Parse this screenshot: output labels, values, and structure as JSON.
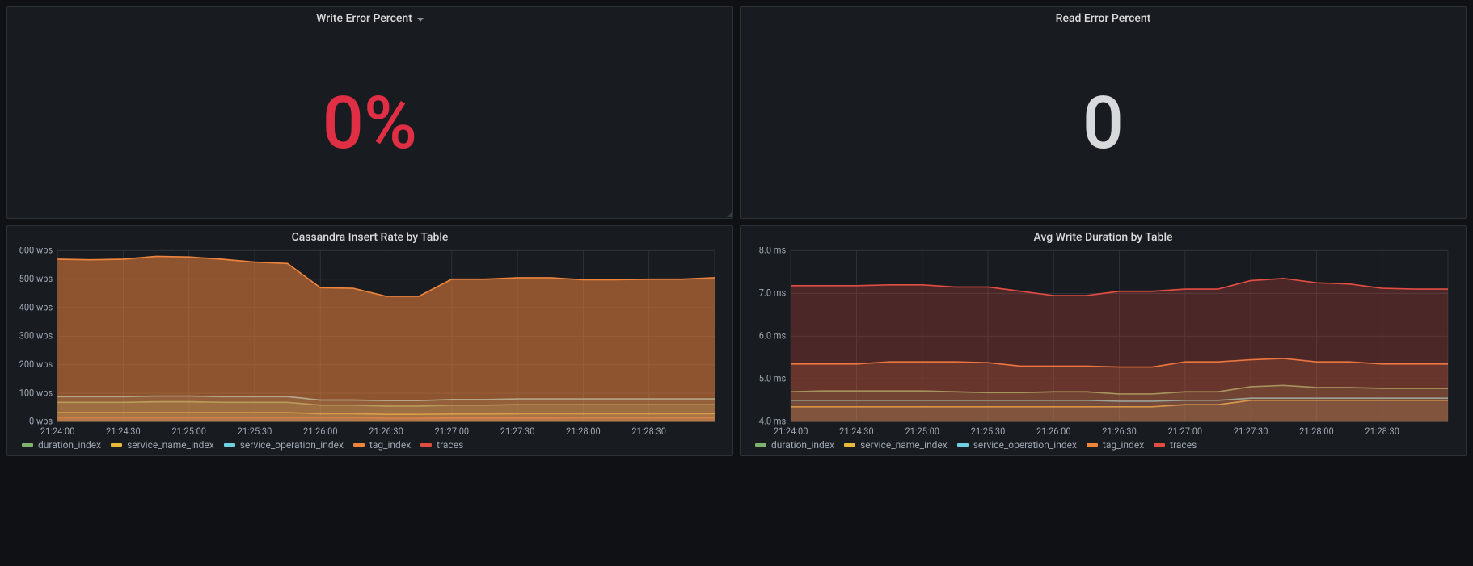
{
  "background_color": "#0f1115",
  "panel_bg": "#181b1f",
  "panel_border": "#2c3235",
  "panels": {
    "write_error_percent": {
      "title": "Write Error Percent",
      "has_menu": true,
      "value": "0%",
      "value_color": "#e02f44",
      "value_fontsize": 90
    },
    "read_error_percent": {
      "title": "Read Error Percent",
      "has_menu": false,
      "value": "0",
      "value_color": "#d8d9da",
      "value_fontsize": 90
    },
    "cassandra_insert_rate": {
      "title": "Cassandra Insert Rate by Table",
      "type": "area-line",
      "x_labels": [
        "21:24:00",
        "21:24:30",
        "21:25:00",
        "21:25:30",
        "21:26:00",
        "21:26:30",
        "21:27:00",
        "21:27:30",
        "21:28:00",
        "21:28:30"
      ],
      "y_labels": [
        "0 wps",
        "100 wps",
        "200 wps",
        "300 wps",
        "400 wps",
        "500 wps",
        "600 wps"
      ],
      "ymin": 0,
      "ymax": 600,
      "grid_color": "#2c3235",
      "axis_fontsize": 11,
      "series": [
        {
          "name": "traces",
          "color": "#e24d42",
          "fill": true,
          "fill_opacity": 0.35,
          "values": [
            15,
            15,
            15,
            15,
            15,
            15,
            15,
            15,
            15,
            15,
            12,
            12,
            13,
            13,
            13,
            13,
            14,
            14,
            14,
            14,
            14
          ]
        },
        {
          "name": "service_name_index",
          "color": "#eab839",
          "fill": true,
          "fill_opacity": 0.15,
          "values": [
            32,
            32,
            32,
            32,
            32,
            32,
            32,
            32,
            28,
            28,
            26,
            26,
            27,
            27,
            28,
            28,
            28,
            28,
            28,
            28,
            28
          ]
        },
        {
          "name": "duration_index",
          "color": "#7eb26d",
          "fill": true,
          "fill_opacity": 0.25,
          "values": [
            68,
            68,
            68,
            70,
            70,
            68,
            68,
            68,
            58,
            58,
            55,
            55,
            58,
            58,
            60,
            60,
            60,
            60,
            60,
            60,
            60
          ]
        },
        {
          "name": "service_operation_index",
          "color": "#6ed0e0",
          "fill": true,
          "fill_opacity": 0.15,
          "values": [
            88,
            88,
            88,
            90,
            90,
            88,
            88,
            88,
            76,
            76,
            74,
            74,
            78,
            78,
            80,
            80,
            80,
            80,
            80,
            80,
            80
          ]
        },
        {
          "name": "tag_index",
          "color": "#ef843c",
          "fill": true,
          "fill_opacity": 0.55,
          "values": [
            570,
            568,
            570,
            580,
            578,
            570,
            560,
            555,
            470,
            468,
            440,
            440,
            500,
            500,
            505,
            505,
            498,
            498,
            500,
            500,
            505
          ]
        }
      ],
      "legend_order": [
        "duration_index",
        "service_name_index",
        "service_operation_index",
        "tag_index",
        "traces"
      ]
    },
    "avg_write_duration": {
      "title": "Avg Write Duration by Table",
      "type": "area-line",
      "x_labels": [
        "21:24:00",
        "21:24:30",
        "21:25:00",
        "21:25:30",
        "21:26:00",
        "21:26:30",
        "21:27:00",
        "21:27:30",
        "21:28:00",
        "21:28:30"
      ],
      "y_labels": [
        "4.0 ms",
        "5.0 ms",
        "6.0 ms",
        "7.0 ms",
        "8.0 ms"
      ],
      "ymin": 4.0,
      "ymax": 8.0,
      "grid_color": "#2c3235",
      "axis_fontsize": 11,
      "series": [
        {
          "name": "service_name_index",
          "color": "#eab839",
          "fill": true,
          "fill_opacity": 0.12,
          "values": [
            4.35,
            4.35,
            4.35,
            4.35,
            4.35,
            4.35,
            4.35,
            4.35,
            4.35,
            4.35,
            4.35,
            4.35,
            4.4,
            4.4,
            4.5,
            4.5,
            4.5,
            4.5,
            4.5,
            4.5,
            4.5
          ]
        },
        {
          "name": "service_operation_index",
          "color": "#6ed0e0",
          "fill": true,
          "fill_opacity": 0.1,
          "values": [
            4.5,
            4.5,
            4.5,
            4.5,
            4.5,
            4.5,
            4.5,
            4.5,
            4.5,
            4.5,
            4.48,
            4.48,
            4.5,
            4.5,
            4.55,
            4.55,
            4.55,
            4.55,
            4.55,
            4.55,
            4.55
          ]
        },
        {
          "name": "duration_index",
          "color": "#7eb26d",
          "fill": true,
          "fill_opacity": 0.15,
          "values": [
            4.7,
            4.72,
            4.72,
            4.72,
            4.72,
            4.7,
            4.68,
            4.68,
            4.7,
            4.7,
            4.65,
            4.65,
            4.7,
            4.7,
            4.82,
            4.85,
            4.8,
            4.8,
            4.78,
            4.78,
            4.78
          ]
        },
        {
          "name": "tag_index",
          "color": "#ef843c",
          "fill": true,
          "fill_opacity": 0.18,
          "values": [
            5.35,
            5.35,
            5.35,
            5.4,
            5.4,
            5.4,
            5.38,
            5.3,
            5.3,
            5.3,
            5.28,
            5.28,
            5.4,
            5.4,
            5.45,
            5.48,
            5.4,
            5.4,
            5.35,
            5.35,
            5.35
          ]
        },
        {
          "name": "traces",
          "color": "#e24d42",
          "fill": true,
          "fill_opacity": 0.25,
          "values": [
            7.18,
            7.18,
            7.18,
            7.2,
            7.2,
            7.15,
            7.15,
            7.05,
            6.95,
            6.95,
            7.05,
            7.05,
            7.1,
            7.1,
            7.3,
            7.35,
            7.25,
            7.22,
            7.12,
            7.1,
            7.1
          ]
        }
      ],
      "legend_order": [
        "duration_index",
        "service_name_index",
        "service_operation_index",
        "tag_index",
        "traces"
      ]
    }
  }
}
